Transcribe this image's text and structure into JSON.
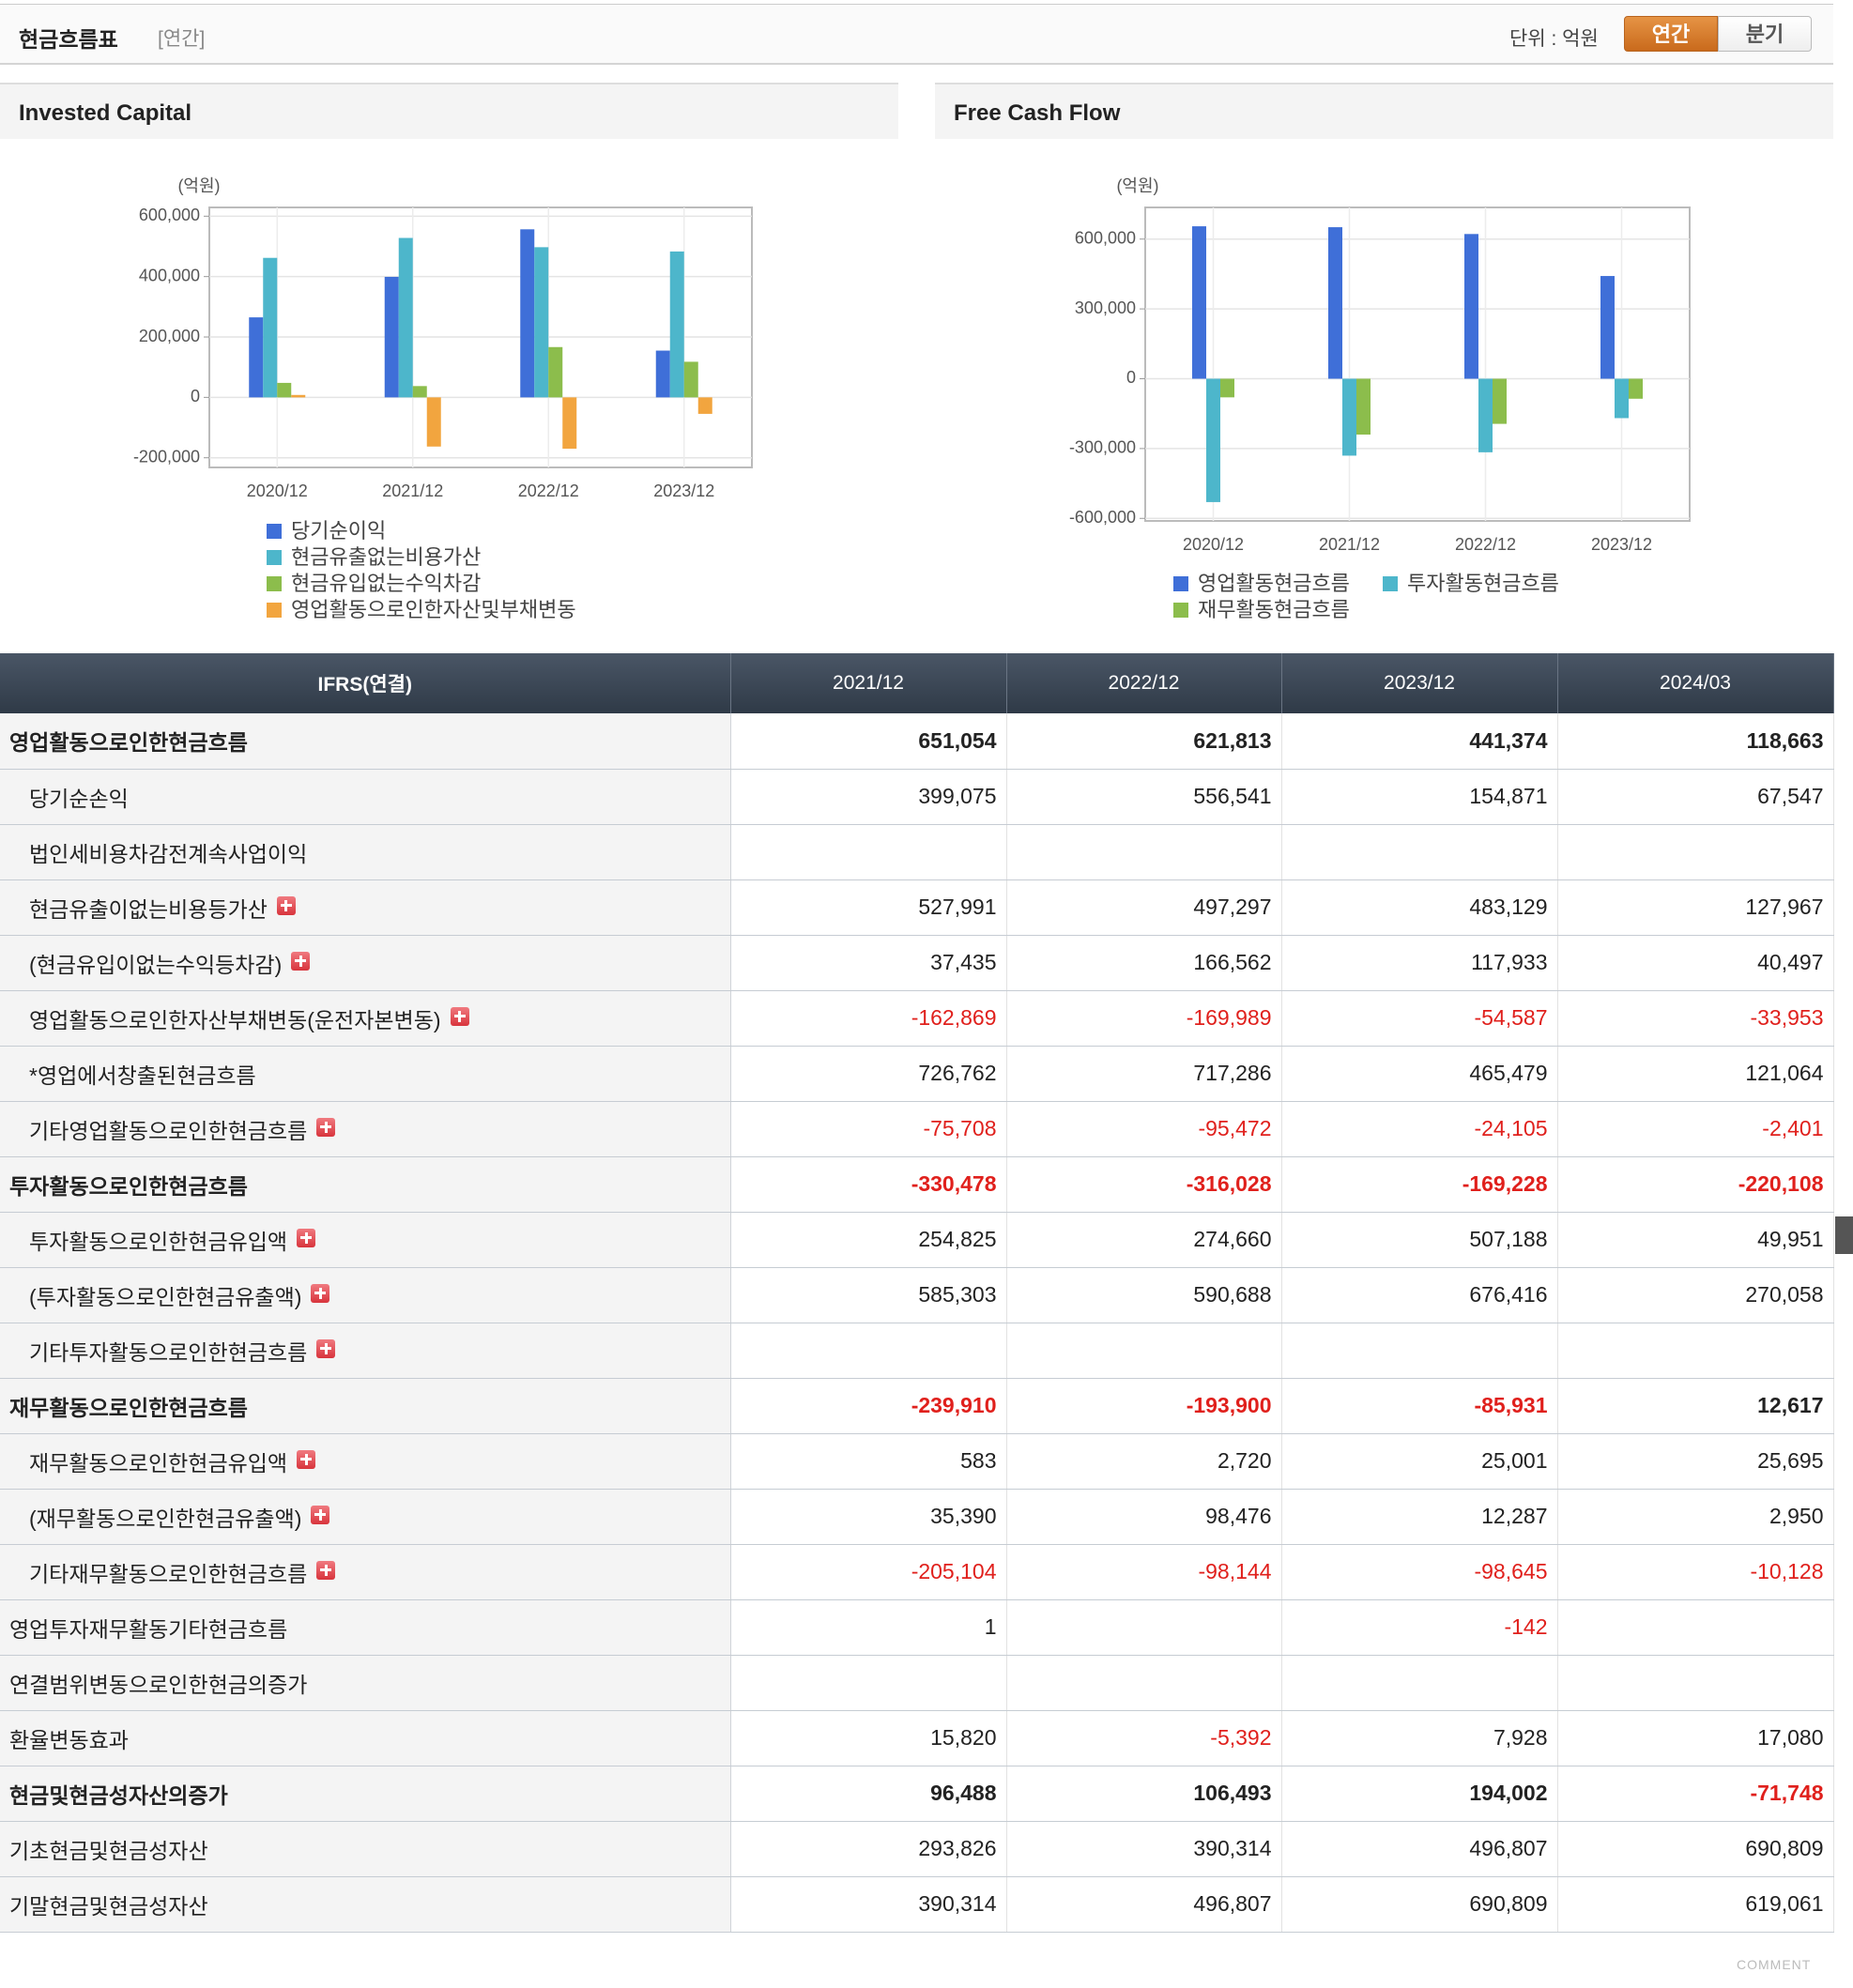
{
  "header": {
    "title": "현금흐름표",
    "subtitle": "[연간]",
    "unit": "단위 : 억원",
    "tabs": [
      "연간",
      "분기"
    ]
  },
  "chart_data": [
    {
      "type": "bar",
      "title": "Invested Capital",
      "y_label": "(억원)",
      "categories": [
        "2020/12",
        "2021/12",
        "2022/12",
        "2023/12"
      ],
      "series": [
        {
          "name": "당기순이익",
          "color": "#3f6fd8",
          "values": [
            265000,
            399075,
            556541,
            154871
          ]
        },
        {
          "name": "현금유출없는비용가산",
          "color": "#4db6cb",
          "values": [
            462000,
            527991,
            497297,
            483129
          ]
        },
        {
          "name": "현금유입없는수익차감",
          "color": "#8cbd4c",
          "values": [
            48000,
            37435,
            166562,
            117933
          ]
        },
        {
          "name": "영업활동으로인한자산및부채변동",
          "color": "#f2a53f",
          "values": [
            8000,
            -162869,
            -169989,
            -54587
          ]
        }
      ],
      "ylim": [
        -232000,
        629000
      ],
      "yticks": [
        {
          "value": -200000,
          "label": "-200,000"
        },
        0,
        {
          "value": 200000,
          "label": "200,000"
        },
        {
          "value": 400000,
          "label": "400,000"
        },
        {
          "value": 600000,
          "label": "600,000"
        }
      ],
      "grid": true
    },
    {
      "type": "bar",
      "title": "Free Cash Flow",
      "y_label": "(억원)",
      "categories": [
        "2020/12",
        "2021/12",
        "2022/12",
        "2023/12"
      ],
      "series": [
        {
          "name": "영업활동현금흐름",
          "color": "#3f6fd8",
          "values": [
            655000,
            651054,
            621813,
            441374
          ]
        },
        {
          "name": "투자활동현금흐름",
          "color": "#4db6cb",
          "values": [
            -530000,
            -330478,
            -316028,
            -169228
          ]
        },
        {
          "name": "재무활동현금흐름",
          "color": "#8cbd4c",
          "values": [
            -80000,
            -239910,
            -193900,
            -85931
          ]
        }
      ],
      "ylim": [
        -611000,
        736000
      ],
      "yticks": [
        {
          "value": -600000,
          "label": "-600,000"
        },
        {
          "value": -300000,
          "label": "-300,000"
        },
        0,
        {
          "value": 300000,
          "label": "300,000"
        },
        {
          "value": 600000,
          "label": "600,000"
        }
      ],
      "grid": true
    }
  ],
  "table": {
    "columns": [
      "IFRS(연결)",
      "2021/12",
      "2022/12",
      "2023/12",
      "2024/03"
    ],
    "rows": [
      {
        "label": "영업활동으로인한현금흐름",
        "bold": true,
        "indent": false,
        "expand": false,
        "values": [
          "651,054",
          "621,813",
          "441,374",
          "118,663"
        ]
      },
      {
        "label": "당기순손익",
        "bold": false,
        "indent": true,
        "expand": false,
        "values": [
          "399,075",
          "556,541",
          "154,871",
          "67,547"
        ]
      },
      {
        "label": "법인세비용차감전계속사업이익",
        "bold": false,
        "indent": true,
        "expand": false,
        "values": [
          null,
          null,
          null,
          null
        ]
      },
      {
        "label": "현금유출이없는비용등가산",
        "bold": false,
        "indent": true,
        "expand": true,
        "values": [
          "527,991",
          "497,297",
          "483,129",
          "127,967"
        ]
      },
      {
        "label": "(현금유입이없는수익등차감)",
        "bold": false,
        "indent": true,
        "expand": true,
        "values": [
          "37,435",
          "166,562",
          "117,933",
          "40,497"
        ]
      },
      {
        "label": "영업활동으로인한자산부채변동(운전자본변동)",
        "bold": false,
        "indent": true,
        "expand": true,
        "values": [
          "-162,869",
          "-169,989",
          "-54,587",
          "-33,953"
        ]
      },
      {
        "label": "*영업에서창출된현금흐름",
        "bold": false,
        "indent": true,
        "expand": false,
        "values": [
          "726,762",
          "717,286",
          "465,479",
          "121,064"
        ]
      },
      {
        "label": "기타영업활동으로인한현금흐름",
        "bold": false,
        "indent": true,
        "expand": true,
        "values": [
          "-75,708",
          "-95,472",
          "-24,105",
          "-2,401"
        ]
      },
      {
        "label": "투자활동으로인한현금흐름",
        "bold": true,
        "indent": false,
        "expand": false,
        "values": [
          "-330,478",
          "-316,028",
          "-169,228",
          "-220,108"
        ]
      },
      {
        "label": "투자활동으로인한현금유입액",
        "bold": false,
        "indent": true,
        "expand": true,
        "values": [
          "254,825",
          "274,660",
          "507,188",
          "49,951"
        ]
      },
      {
        "label": "(투자활동으로인한현금유출액)",
        "bold": false,
        "indent": true,
        "expand": true,
        "values": [
          "585,303",
          "590,688",
          "676,416",
          "270,058"
        ]
      },
      {
        "label": "기타투자활동으로인한현금흐름",
        "bold": false,
        "indent": true,
        "expand": true,
        "values": [
          null,
          null,
          null,
          null
        ]
      },
      {
        "label": "재무활동으로인한현금흐름",
        "bold": true,
        "indent": false,
        "expand": false,
        "values": [
          "-239,910",
          "-193,900",
          "-85,931",
          "12,617"
        ]
      },
      {
        "label": "재무활동으로인한현금유입액",
        "bold": false,
        "indent": true,
        "expand": true,
        "values": [
          "583",
          "2,720",
          "25,001",
          "25,695"
        ]
      },
      {
        "label": "(재무활동으로인한현금유출액)",
        "bold": false,
        "indent": true,
        "expand": true,
        "values": [
          "35,390",
          "98,476",
          "12,287",
          "2,950"
        ]
      },
      {
        "label": "기타재무활동으로인한현금흐름",
        "bold": false,
        "indent": true,
        "expand": true,
        "values": [
          "-205,104",
          "-98,144",
          "-98,645",
          "-10,128"
        ]
      },
      {
        "label": "영업투자재무활동기타현금흐름",
        "bold": false,
        "indent": false,
        "expand": false,
        "values": [
          "1",
          null,
          "-142",
          null
        ]
      },
      {
        "label": "연결범위변동으로인한현금의증가",
        "bold": false,
        "indent": false,
        "expand": false,
        "values": [
          null,
          null,
          null,
          null
        ]
      },
      {
        "label": "환율변동효과",
        "bold": false,
        "indent": false,
        "expand": false,
        "values": [
          "15,820",
          "-5,392",
          "7,928",
          "17,080"
        ]
      },
      {
        "label": "현금및현금성자산의증가",
        "bold": true,
        "indent": false,
        "expand": false,
        "values": [
          "96,488",
          "106,493",
          "194,002",
          "-71,748"
        ]
      },
      {
        "label": "기초현금및현금성자산",
        "bold": false,
        "indent": false,
        "expand": false,
        "values": [
          "293,826",
          "390,314",
          "496,807",
          "690,809"
        ]
      },
      {
        "label": "기말현금및현금성자산",
        "bold": false,
        "indent": false,
        "expand": false,
        "values": [
          "390,314",
          "496,807",
          "690,809",
          "619,061"
        ]
      }
    ]
  },
  "footer": "COMMENT"
}
